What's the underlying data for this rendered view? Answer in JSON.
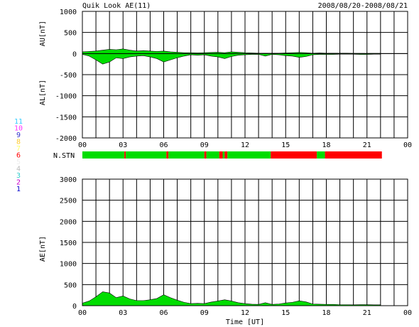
{
  "header": {
    "title": "Quik Look AE(11)",
    "date_range": "2008/08/20-2008/08/21"
  },
  "station_legend": {
    "numbers": [
      {
        "label": "11",
        "color": "#33ccff"
      },
      {
        "label": "10",
        "color": "#ff33ff"
      },
      {
        "label": "9",
        "color": "#3333cc"
      },
      {
        "label": "8",
        "color": "#ffcc33"
      },
      {
        "label": "7",
        "color": "#ffff66"
      },
      {
        "label": "6",
        "color": "#ff0000"
      },
      {
        "label": "5",
        "color": "#eeeeee"
      },
      {
        "label": "4",
        "color": "#bbbbbb"
      },
      {
        "label": "3",
        "color": "#33cccc"
      },
      {
        "label": "2",
        "color": "#cc00cc"
      },
      {
        "label": "1",
        "color": "#0000cc"
      }
    ]
  },
  "chart_data": [
    {
      "type": "area",
      "panel": "AU/AL",
      "ylabel_upper": "AU[nT]",
      "ylabel_lower": "AL[nT]",
      "ylim": [
        -2000,
        1000
      ],
      "yticks": [
        "1000",
        "500",
        "0",
        "-500",
        "-1000",
        "-1500",
        "-2000"
      ],
      "xlim": [
        0,
        24
      ],
      "xticks": [
        "00",
        "03",
        "06",
        "09",
        "12",
        "15",
        "18",
        "21",
        "00"
      ],
      "grid": true,
      "series": [
        {
          "x": [
            0,
            0.5,
            1,
            1.5,
            2,
            2.5,
            3,
            3.5,
            4,
            4.5,
            5,
            5.5,
            6,
            6.5,
            7,
            7.5,
            8,
            8.5,
            9,
            9.5,
            10,
            10.5,
            11,
            11.5,
            12,
            12.5,
            13,
            13.5,
            14,
            14.5,
            15,
            15.5,
            16,
            16.5,
            17,
            17.5,
            18,
            18.5,
            19,
            19.5,
            20,
            20.5,
            21,
            21.5,
            22
          ],
          "values": [
            40,
            50,
            60,
            80,
            100,
            90,
            110,
            80,
            60,
            70,
            60,
            50,
            60,
            40,
            30,
            20,
            20,
            15,
            20,
            25,
            30,
            20,
            40,
            30,
            20,
            15,
            10,
            10,
            10,
            10,
            15,
            20,
            25,
            20,
            10,
            15,
            10,
            10,
            8,
            8,
            5,
            5,
            5,
            5,
            5
          ]
        },
        {
          "x": [
            0,
            0.5,
            1,
            1.5,
            2,
            2.5,
            3,
            3.5,
            4,
            4.5,
            5,
            5.5,
            6,
            6.5,
            7,
            7.5,
            8,
            8.5,
            9,
            9.5,
            10,
            10.5,
            11,
            11.5,
            12,
            12.5,
            13,
            13.5,
            14,
            14.5,
            15,
            15.5,
            16,
            16.5,
            17,
            17.5,
            18,
            18.5,
            19,
            19.5,
            20,
            20.5,
            21,
            21.5,
            22
          ],
          "values": [
            -20,
            -60,
            -150,
            -250,
            -200,
            -100,
            -120,
            -80,
            -60,
            -50,
            -80,
            -120,
            -200,
            -150,
            -100,
            -60,
            -30,
            -40,
            -30,
            -60,
            -80,
            -120,
            -70,
            -40,
            -30,
            -20,
            -20,
            -60,
            -20,
            -30,
            -50,
            -60,
            -90,
            -70,
            -30,
            -20,
            -20,
            -20,
            -15,
            -15,
            -15,
            -20,
            -20,
            -15,
            -15
          ]
        }
      ]
    },
    {
      "type": "bar",
      "panel": "N.STN",
      "label": "N.STN",
      "segments": [
        {
          "start": 0,
          "end": 3.1,
          "color": "#00dd00"
        },
        {
          "start": 3.1,
          "end": 3.2,
          "color": "#ff0000"
        },
        {
          "start": 3.2,
          "end": 6.2,
          "color": "#00dd00"
        },
        {
          "start": 6.2,
          "end": 6.35,
          "color": "#ff0000"
        },
        {
          "start": 6.35,
          "end": 9.0,
          "color": "#00dd00"
        },
        {
          "start": 9.0,
          "end": 9.15,
          "color": "#ff0000"
        },
        {
          "start": 9.15,
          "end": 10.1,
          "color": "#00dd00"
        },
        {
          "start": 10.1,
          "end": 10.35,
          "color": "#ff0000"
        },
        {
          "start": 10.35,
          "end": 10.5,
          "color": "#00dd00"
        },
        {
          "start": 10.5,
          "end": 10.7,
          "color": "#ff0000"
        },
        {
          "start": 10.7,
          "end": 13.9,
          "color": "#00dd00"
        },
        {
          "start": 13.9,
          "end": 17.3,
          "color": "#ff0000"
        },
        {
          "start": 17.3,
          "end": 17.9,
          "color": "#00dd00"
        },
        {
          "start": 17.9,
          "end": 22.1,
          "color": "#ff0000"
        }
      ]
    },
    {
      "type": "area",
      "panel": "AE",
      "ylabel": "AE[nT]",
      "xlabel": "Time [UT]",
      "ylim": [
        0,
        3000
      ],
      "yticks": [
        "3000",
        "2500",
        "2000",
        "1500",
        "1000",
        "500",
        "0"
      ],
      "xlim": [
        0,
        24
      ],
      "xticks": [
        "00",
        "03",
        "06",
        "09",
        "12",
        "15",
        "18",
        "21",
        "00"
      ],
      "grid": true,
      "series": [
        {
          "x": [
            0,
            0.5,
            1,
            1.5,
            2,
            2.5,
            3,
            3.5,
            4,
            4.5,
            5,
            5.5,
            6,
            6.5,
            7,
            7.5,
            8,
            8.5,
            9,
            9.5,
            10,
            10.5,
            11,
            11.5,
            12,
            12.5,
            13,
            13.5,
            14,
            14.5,
            15,
            15.5,
            16,
            16.5,
            17,
            17.5,
            18,
            18.5,
            19,
            19.5,
            20,
            20.5,
            21,
            21.5,
            22
          ],
          "values": [
            60,
            110,
            210,
            330,
            300,
            190,
            230,
            160,
            120,
            120,
            140,
            170,
            260,
            190,
            130,
            80,
            50,
            55,
            50,
            85,
            110,
            140,
            110,
            70,
            50,
            35,
            30,
            70,
            30,
            40,
            65,
            80,
            115,
            90,
            40,
            35,
            30,
            30,
            23,
            23,
            20,
            25,
            25,
            20,
            20
          ]
        }
      ]
    }
  ]
}
